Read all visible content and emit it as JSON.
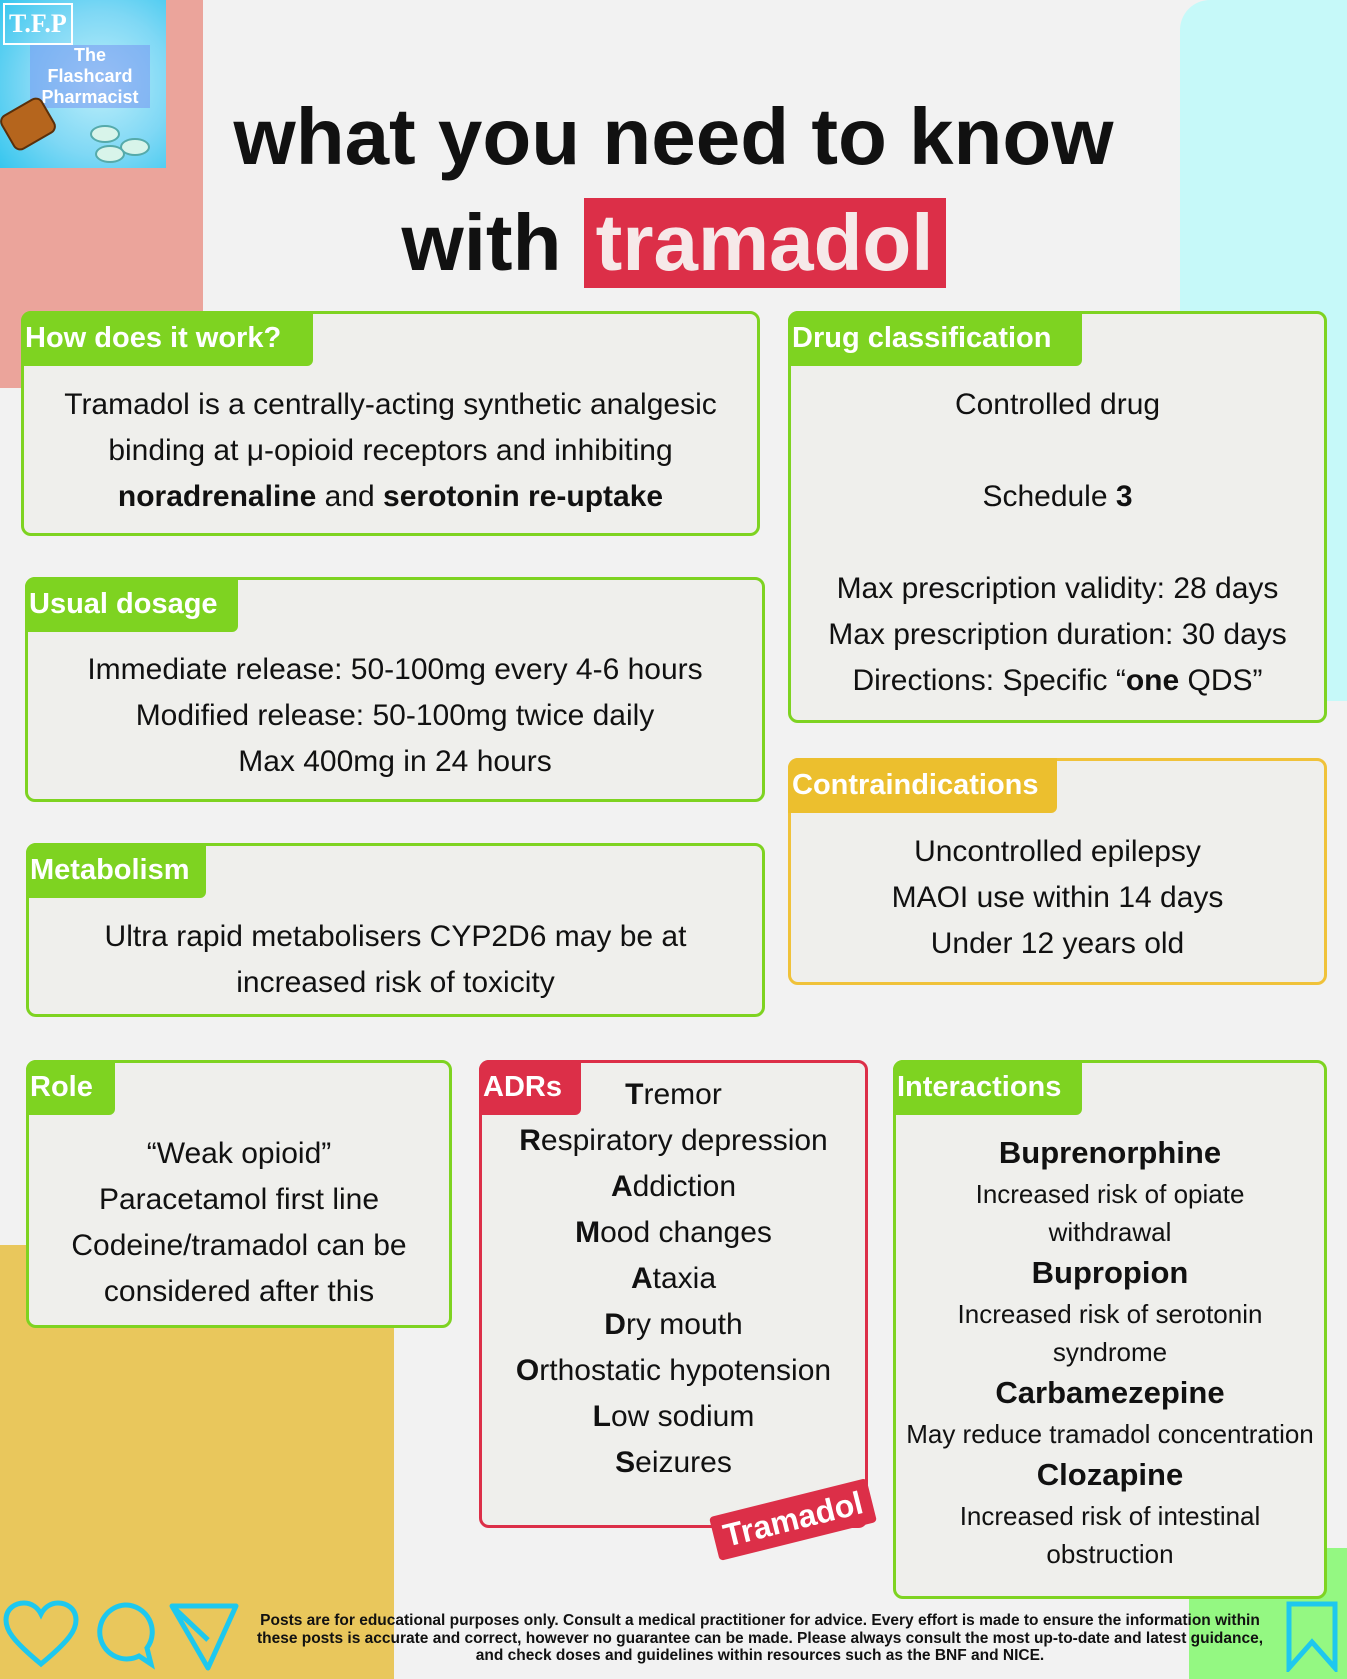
{
  "logo": {
    "short": "T.F.P",
    "name": "The Flashcard Pharmacist"
  },
  "title": {
    "line1": "what you need to know",
    "with": "with",
    "drug": "tramadol"
  },
  "how": {
    "label": "How does it work?",
    "lines": [
      [
        {
          "t": "Tramadol is a centrally-acting synthetic analgesic",
          "b": false
        }
      ],
      [
        {
          "t": "binding at μ-opioid receptors and inhibiting",
          "b": false
        }
      ],
      [
        {
          "t": "noradrenaline",
          "b": true
        },
        {
          "t": " and ",
          "b": false
        },
        {
          "t": "serotonin re-uptake",
          "b": true
        }
      ]
    ]
  },
  "dosage": {
    "label": "Usual dosage",
    "lines": [
      "Immediate release: 50-100mg every 4-6 hours",
      "Modified release: 50-100mg twice daily",
      "Max 400mg in 24 hours"
    ]
  },
  "metabolism": {
    "label": "Metabolism",
    "lines": [
      "Ultra rapid metabolisers CYP2D6 may be at",
      "increased risk of toxicity"
    ]
  },
  "classification": {
    "label": "Drug classification",
    "controlled": "Controlled drug",
    "schedule_text": "Schedule ",
    "schedule_num": "3",
    "validity": "Max prescription validity: 28 days",
    "duration": "Max prescription duration: 30 days",
    "directions_pre": "Directions: Specific “",
    "directions_bold": "one",
    "directions_post": " QDS”"
  },
  "contra": {
    "label": "Contraindications",
    "lines": [
      "Uncontrolled epilepsy",
      "MAOI use within 14 days",
      "Under 12 years old"
    ]
  },
  "role": {
    "label": "Role",
    "lines": [
      "“Weak opioid”",
      "Paracetamol first line",
      "Codeine/tramadol can be",
      "considered after this"
    ]
  },
  "adrs": {
    "label": "ADRs",
    "items": [
      {
        "i": "T",
        "r": "remor"
      },
      {
        "i": "R",
        "r": "espiratory depression"
      },
      {
        "i": "A",
        "r": "ddiction"
      },
      {
        "i": "M",
        "r": "ood changes"
      },
      {
        "i": "A",
        "r": "taxia"
      },
      {
        "i": "D",
        "r": "ry mouth"
      },
      {
        "i": "O",
        "r": "rthostatic hypotension"
      },
      {
        "i": "L",
        "r": "ow sodium"
      },
      {
        "i": "S",
        "r": "eizures"
      }
    ],
    "stamp": "Tramadol"
  },
  "interactions": {
    "label": "Interactions",
    "items": [
      {
        "drug": "Buprenorphine",
        "notes": [
          "Increased risk of opiate",
          "withdrawal"
        ]
      },
      {
        "drug": "Bupropion",
        "notes": [
          "Increased risk of serotonin",
          "syndrome"
        ]
      },
      {
        "drug": "Carbamezepine",
        "notes": [
          "May reduce tramadol concentration"
        ]
      },
      {
        "drug": "Clozapine",
        "notes": [
          "Increased risk of intestinal",
          "obstruction"
        ]
      }
    ]
  },
  "footer": {
    "disclaimer": "Posts are for educational purposes only.  Consult a medical practitioner for advice. Every effort is made to ensure the information within these posts is accurate and correct, however no guarantee can be made. Please always consult the most up-to-date and latest guidance, and check doses and guidelines within resources such as the BNF and NICE."
  },
  "social_icons": [
    "heart-icon",
    "comment-icon",
    "send-icon",
    "bookmark-icon"
  ],
  "colors": {
    "green": "#7ed321",
    "red": "#dc2f48",
    "yellow": "#ecbf2e",
    "icon": "#1ec8ee"
  }
}
